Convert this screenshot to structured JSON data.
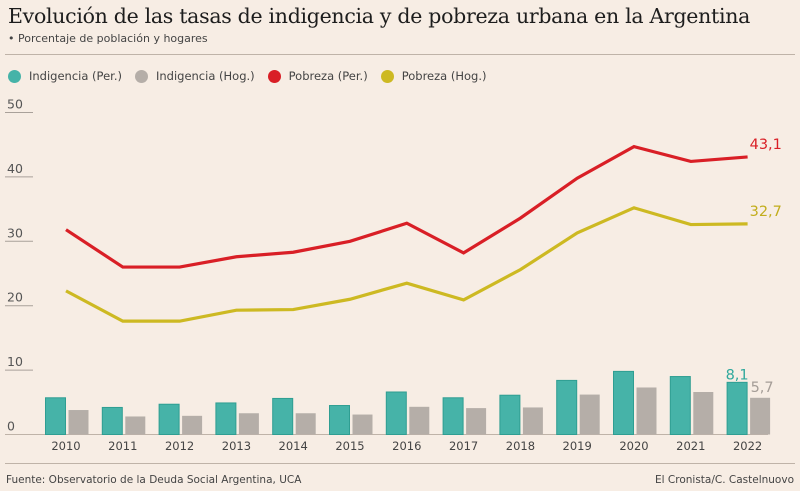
{
  "header": {
    "title": "Evolución de las tasas de indigencia y de pobreza urbana en la Argentina",
    "subtitle": "• Porcentaje de población y hogares"
  },
  "legend": [
    {
      "label": "Indigencia (Per.)",
      "color": "#46b3a8"
    },
    {
      "label": "Indigencia (Hog.)",
      "color": "#b5aea8"
    },
    {
      "label": "Pobreza (Per.)",
      "color": "#d91f26"
    },
    {
      "label": "Pobreza (Hog.)",
      "color": "#cdb922"
    }
  ],
  "footer": {
    "source": "Fuente: Observatorio de la Deuda Social Argentina, UCA",
    "credit": "El Cronista/C. Castelnuovo"
  },
  "chart_data": {
    "type": "bar+line",
    "title": "Evolución de las tasas de indigencia y de pobreza urbana en la Argentina",
    "subtitle": "Porcentaje de población y hogares",
    "xlabel": "",
    "ylabel": "",
    "ylim": [
      0,
      50
    ],
    "yticks": [
      0,
      10,
      20,
      30,
      40,
      50
    ],
    "grid": false,
    "legend_position": "top-left",
    "categories": [
      "2010",
      "2011",
      "2012",
      "2013",
      "2014",
      "2015",
      "2016",
      "2017",
      "2018",
      "2019",
      "2020",
      "2021",
      "2022"
    ],
    "series": [
      {
        "name": "Indigencia (Per.)",
        "type": "bar",
        "color": "#46b3a8",
        "values": [
          5.7,
          4.2,
          4.7,
          4.9,
          5.6,
          4.5,
          6.6,
          5.7,
          6.1,
          8.4,
          9.8,
          9.0,
          8.1
        ]
      },
      {
        "name": "Indigencia (Hog.)",
        "type": "bar",
        "color": "#b5aea8",
        "values": [
          3.8,
          2.8,
          2.9,
          3.3,
          3.3,
          3.1,
          4.3,
          4.1,
          4.2,
          6.2,
          7.3,
          6.6,
          5.7
        ]
      },
      {
        "name": "Pobreza (Per.)",
        "type": "line",
        "color": "#d91f26",
        "values": [
          31.8,
          26.0,
          26.0,
          27.6,
          28.3,
          30.0,
          32.8,
          28.2,
          33.6,
          39.8,
          44.7,
          42.4,
          43.1
        ]
      },
      {
        "name": "Pobreza (Hog.)",
        "type": "line",
        "color": "#cdb922",
        "values": [
          22.3,
          17.6,
          17.6,
          19.3,
          19.4,
          21.0,
          23.5,
          20.9,
          25.6,
          31.3,
          35.2,
          32.6,
          32.7
        ]
      }
    ],
    "annotations": [
      {
        "series": "Pobreza (Per.)",
        "category": "2022",
        "text": "43,1"
      },
      {
        "series": "Pobreza (Hog.)",
        "category": "2022",
        "text": "32,7"
      },
      {
        "series": "Indigencia (Per.)",
        "category": "2022",
        "text": "8,1"
      },
      {
        "series": "Indigencia (Hog.)",
        "category": "2022",
        "text": "5,7"
      }
    ]
  }
}
